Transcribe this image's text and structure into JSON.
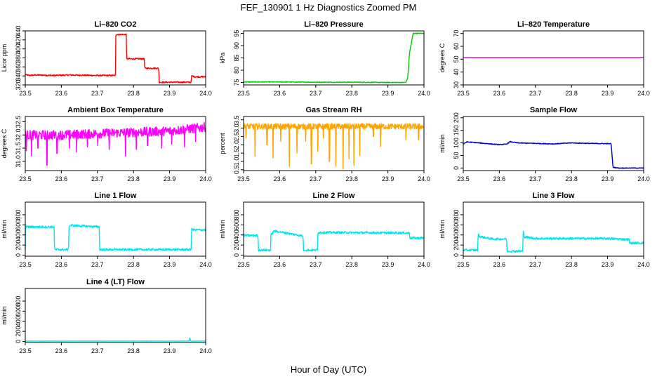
{
  "figure": {
    "title": "FEF_130901  1 Hz Diagnostics Zoomed PM",
    "xlabel": "Hour of Day (UTC)"
  },
  "chart_data": [
    {
      "type": "line",
      "title": "Li–820 CO2",
      "ylabel": "Licor ppm",
      "xlim": [
        23.5,
        24.0
      ],
      "ylim": [
        320,
        440
      ],
      "xticks": [
        "23.5",
        "23.6",
        "23.7",
        "23.8",
        "23.9",
        "24.0"
      ],
      "yticks": [
        "320",
        "340",
        "360",
        "380",
        "400",
        "420",
        "440"
      ],
      "color": "#ff0000",
      "grid": false,
      "noise": 1.5,
      "x": [
        23.5,
        23.51,
        23.53,
        23.58,
        23.62,
        23.7,
        23.75,
        23.751,
        23.78,
        23.781,
        23.83,
        23.831,
        23.87,
        23.871,
        23.96,
        23.961,
        23.97,
        24.0
      ],
      "y": [
        343,
        341,
        342,
        341,
        342,
        341,
        341,
        432,
        432,
        378,
        378,
        357,
        357,
        326,
        326,
        340,
        338,
        338
      ]
    },
    {
      "type": "line",
      "title": "Li–820 Pressure",
      "ylabel": "kPa",
      "xlim": [
        23.5,
        24.0
      ],
      "ylim": [
        74,
        96
      ],
      "xticks": [
        "23.5",
        "23.6",
        "23.7",
        "23.8",
        "23.9",
        "24.0"
      ],
      "yticks": [
        "75",
        "80",
        "85",
        "90",
        "95"
      ],
      "color": "#00cc00",
      "grid": false,
      "noise": 0.15,
      "x": [
        23.5,
        23.6,
        23.7,
        23.8,
        23.9,
        23.95,
        23.955,
        23.96,
        23.97,
        24.0
      ],
      "y": [
        75.2,
        75.2,
        75.1,
        75.1,
        75.0,
        75.0,
        77,
        87,
        95,
        95
      ]
    },
    {
      "type": "line",
      "title": "Li–820 Temperature",
      "ylabel": "degrees C",
      "xlim": [
        23.5,
        24.0
      ],
      "ylim": [
        30,
        72
      ],
      "xticks": [
        "23.5",
        "23.6",
        "23.7",
        "23.8",
        "23.9",
        "24.0"
      ],
      "yticks": [
        "30",
        "40",
        "50",
        "60",
        "70"
      ],
      "color": "#cc00cc",
      "grid": false,
      "noise": 0,
      "x": [
        23.5,
        24.0
      ],
      "y": [
        51.2,
        51.2
      ]
    },
    {
      "type": "line",
      "title": "Ambient Box Temperature",
      "ylabel": "degrees C",
      "xlim": [
        23.5,
        24.0
      ],
      "ylim": [
        30.65,
        32.7
      ],
      "xticks": [
        "23.5",
        "23.6",
        "23.7",
        "23.8",
        "23.9",
        "24.0"
      ],
      "yticks": [
        "31.0",
        "31.5",
        "32.0",
        "32.5"
      ],
      "color": "#ff00ff",
      "grid": false,
      "noise": 0.18,
      "x": [
        23.5,
        23.6,
        23.7,
        23.8,
        23.9,
        24.0
      ],
      "y": [
        32.0,
        32.0,
        32.05,
        32.1,
        32.15,
        32.3
      ],
      "spikes": [
        [
          23.503,
          31.4
        ],
        [
          23.517,
          31.2
        ],
        [
          23.535,
          31.5
        ],
        [
          23.56,
          30.85
        ],
        [
          23.588,
          31.3
        ],
        [
          23.622,
          31.5
        ],
        [
          23.642,
          31.35
        ],
        [
          23.672,
          31.55
        ],
        [
          23.701,
          31.6
        ],
        [
          23.733,
          31.45
        ],
        [
          23.778,
          31.2
        ],
        [
          23.808,
          31.45
        ],
        [
          23.839,
          31.6
        ],
        [
          23.878,
          31.5
        ],
        [
          23.906,
          31.65
        ],
        [
          23.941,
          31.55
        ],
        [
          23.972,
          31.75
        ]
      ]
    },
    {
      "type": "line",
      "title": "Gas Stream RH",
      "ylabel": "percent",
      "xlim": [
        23.5,
        24.0
      ],
      "ylim": [
        0.45,
        3.7
      ],
      "xticks": [
        "23.5",
        "23.6",
        "23.7",
        "23.8",
        "23.9",
        "24.0"
      ],
      "yticks": [
        "0.5",
        "1.0",
        "1.5",
        "2.0",
        "2.5",
        "3.0",
        "3.5"
      ],
      "color": "#ffa500",
      "grid": false,
      "noise": 0.18,
      "x": [
        23.5,
        24.0
      ],
      "y": [
        3.1,
        3.1
      ],
      "spikes": [
        [
          23.507,
          2.4
        ],
        [
          23.532,
          1.3
        ],
        [
          23.565,
          2.0
        ],
        [
          23.582,
          1.2
        ],
        [
          23.603,
          2.2
        ],
        [
          23.627,
          0.7
        ],
        [
          23.648,
          1.5
        ],
        [
          23.672,
          2.2
        ],
        [
          23.688,
          0.85
        ],
        [
          23.706,
          1.6
        ],
        [
          23.721,
          2.4
        ],
        [
          23.738,
          1.0
        ],
        [
          23.756,
          0.7
        ],
        [
          23.776,
          0.55
        ],
        [
          23.792,
          1.15
        ],
        [
          23.806,
          0.75
        ],
        [
          23.822,
          1.35
        ],
        [
          23.86,
          2.5
        ],
        [
          23.88,
          1.9
        ],
        [
          23.95,
          2.3
        ],
        [
          23.985,
          2.3
        ]
      ]
    },
    {
      "type": "line",
      "title": "Sample Flow",
      "ylabel": "ml/min",
      "xlim": [
        23.5,
        24.0
      ],
      "ylim": [
        -10,
        205
      ],
      "xticks": [
        "23.5",
        "23.6",
        "23.7",
        "23.8",
        "23.9",
        "24.0"
      ],
      "yticks": [
        "0",
        "50",
        "100",
        "150",
        "200"
      ],
      "color": "#0000cc",
      "grid": false,
      "noise": 1.5,
      "x": [
        23.5,
        23.51,
        23.56,
        23.6,
        23.62,
        23.63,
        23.65,
        23.7,
        23.75,
        23.8,
        23.85,
        23.9,
        23.91,
        23.915,
        23.93,
        24.0
      ],
      "y": [
        95,
        104,
        98,
        93,
        95,
        105,
        100,
        98,
        96,
        100,
        98,
        97,
        97,
        3,
        0,
        0
      ]
    },
    {
      "type": "line",
      "title": "Line 1 Flow",
      "ylabel": "ml/min",
      "xlim": [
        23.5,
        24.0
      ],
      "ylim": [
        -20,
        1050
      ],
      "xticks": [
        "23.5",
        "23.6",
        "23.7",
        "23.8",
        "23.9",
        "24.0"
      ],
      "yticks": [
        "0",
        "200",
        "400",
        "600",
        "800"
      ],
      "color": "#00e5ee",
      "grid": false,
      "noise": 22,
      "x": [
        23.5,
        23.501,
        23.504,
        23.58,
        23.581,
        23.62,
        23.621,
        23.625,
        23.705,
        23.706,
        23.96,
        23.961,
        23.965,
        24.0
      ],
      "y": [
        120,
        600,
        560,
        560,
        110,
        110,
        560,
        590,
        560,
        110,
        110,
        540,
        500,
        500
      ]
    },
    {
      "type": "line",
      "title": "Line 2 Flow",
      "ylabel": "ml/min",
      "xlim": [
        23.5,
        24.0
      ],
      "ylim": [
        -20,
        1050
      ],
      "xticks": [
        "23.5",
        "23.6",
        "23.7",
        "23.8",
        "23.9",
        "24.0"
      ],
      "yticks": [
        "0",
        "200",
        "400",
        "600",
        "800"
      ],
      "color": "#00e5ee",
      "grid": false,
      "noise": 22,
      "x": [
        23.5,
        23.54,
        23.541,
        23.575,
        23.576,
        23.585,
        23.665,
        23.666,
        23.705,
        23.706,
        23.71,
        23.96,
        23.961,
        24.0
      ],
      "y": [
        390,
        390,
        100,
        100,
        400,
        480,
        380,
        100,
        100,
        460,
        450,
        440,
        340,
        340
      ]
    },
    {
      "type": "line",
      "title": "Line 3 Flow",
      "ylabel": "ml/min",
      "xlim": [
        23.5,
        24.0
      ],
      "ylim": [
        -20,
        1050
      ],
      "xticks": [
        "23.5",
        "23.6",
        "23.7",
        "23.8",
        "23.9",
        "24.0"
      ],
      "yticks": [
        "0",
        "200",
        "400",
        "600",
        "800"
      ],
      "color": "#00e5ee",
      "grid": false,
      "noise": 22,
      "x": [
        23.5,
        23.54,
        23.541,
        23.545,
        23.58,
        23.62,
        23.621,
        23.665,
        23.666,
        23.67,
        23.7,
        23.8,
        23.9,
        23.96,
        23.961,
        24.0
      ],
      "y": [
        100,
        100,
        420,
        370,
        320,
        320,
        80,
        80,
        470,
        360,
        330,
        330,
        330,
        310,
        240,
        240
      ]
    },
    {
      "type": "line",
      "title": "Line 4 (LT) Flow",
      "ylabel": "ml/min",
      "xlim": [
        23.5,
        24.0
      ],
      "ylim": [
        -20,
        1050
      ],
      "xticks": [
        "23.5",
        "23.6",
        "23.7",
        "23.8",
        "23.9",
        "24.0"
      ],
      "yticks": [
        "0",
        "200",
        "400",
        "600",
        "800"
      ],
      "color": "#00e5ee",
      "grid": false,
      "noise": 3,
      "x": [
        23.5,
        23.955,
        23.956,
        23.958,
        23.959,
        24.0
      ],
      "y": [
        8,
        8,
        90,
        10,
        8,
        8
      ]
    }
  ]
}
